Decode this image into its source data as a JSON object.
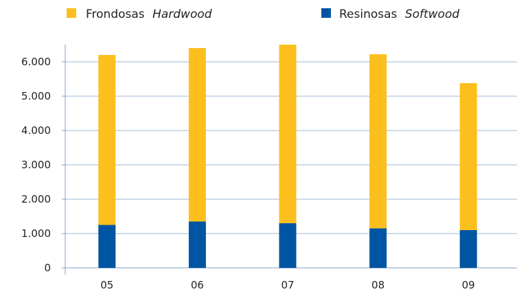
{
  "chart_data": {
    "type": "bar",
    "stacked": true,
    "categories": [
      "05",
      "06",
      "07",
      "08",
      "09"
    ],
    "series": [
      {
        "name": "Frondosas Hardwood",
        "name_regular": "Frondosas",
        "name_italic": "Hardwood",
        "color": "#FDBF1E",
        "values": [
          4950,
          5050,
          5200,
          5070,
          4280
        ]
      },
      {
        "name": "Resinosas Softwood",
        "name_regular": "Resinosas",
        "name_italic": "Softwood",
        "color": "#0055A2",
        "values": [
          1250,
          1350,
          1300,
          1150,
          1100
        ]
      }
    ],
    "ylim": [
      0,
      6500
    ],
    "yticks": [
      0,
      1000,
      2000,
      3000,
      4000,
      5000,
      6000
    ],
    "ytick_labels": [
      "0",
      "1.000",
      "2.000",
      "3.000",
      "4.000",
      "5.000",
      "6.000"
    ],
    "title": "",
    "xlabel": "",
    "ylabel": "",
    "grid": true,
    "grid_color": "#9DB7D6",
    "axis_color": "#7F9CC4",
    "legend_position": "top"
  }
}
